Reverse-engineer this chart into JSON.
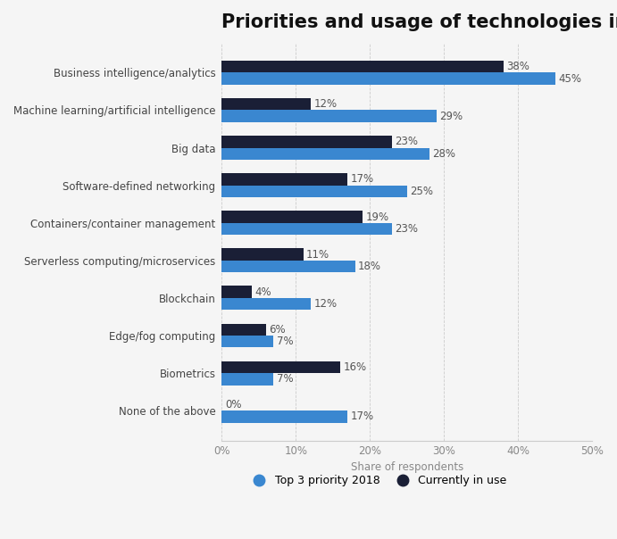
{
  "title": "Priorities and usage of technologies in organizations",
  "categories": [
    "None of the above",
    "Biometrics",
    "Edge/fog computing",
    "Blockchain",
    "Serverless computing/microservices",
    "Containers/container management",
    "Software-defined networking",
    "Big data",
    "Machine learning/artificial intelligence",
    "Business intelligence/analytics"
  ],
  "priority_values": [
    17,
    7,
    7,
    12,
    18,
    23,
    25,
    28,
    29,
    45
  ],
  "current_values": [
    0,
    16,
    6,
    4,
    11,
    19,
    17,
    23,
    12,
    38
  ],
  "priority_color": "#3a87d0",
  "current_color": "#1a1f36",
  "xlabel": "Share of respondents",
  "xlim": [
    0,
    50
  ],
  "xticks": [
    0,
    10,
    20,
    30,
    40,
    50
  ],
  "xtick_labels": [
    "0%",
    "10%",
    "20%",
    "30%",
    "40%",
    "50%"
  ],
  "legend_priority": "Top 3 priority 2018",
  "legend_current": "Currently in use",
  "background_color": "#f5f5f5",
  "title_fontsize": 15,
  "label_fontsize": 8.5,
  "tick_fontsize": 8.5,
  "bar_height": 0.32
}
